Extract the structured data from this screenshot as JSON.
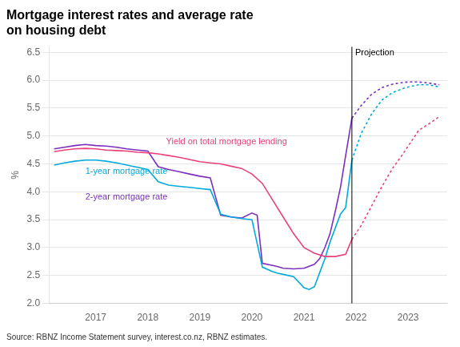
{
  "chart_data": {
    "type": "line",
    "title": [
      "Mortgage interest rates and average rate",
      "on housing debt"
    ],
    "source": "Source: RBNZ Income Statement survey, interest.co.nz, RBNZ estimates.",
    "y_label": "%",
    "xlim": [
      2016.1,
      2023.75
    ],
    "xticks": [
      2017,
      2018,
      2019,
      2020,
      2021,
      2022,
      2023
    ],
    "ylim": [
      2.0,
      6.6
    ],
    "yticks": [
      {
        "value": 2.0,
        "label": "2.0"
      },
      2.5,
      {
        "value": 3.0,
        "label": "3.0"
      },
      3.5,
      {
        "value": 4.0,
        "label": "4.0"
      },
      4.5,
      {
        "value": 5.0,
        "label": "5.0"
      },
      5.5,
      {
        "value": 6.0,
        "label": "6.0"
      },
      6.5
    ],
    "grid": "y",
    "series": [
      {
        "color": "#e8417a",
        "line_style": "solid",
        "x": [
          2016.2,
          2016.4,
          2016.6,
          2016.8,
          2017.0,
          2017.2,
          2017.4,
          2017.6,
          2017.8,
          2018.0,
          2018.2,
          2018.4,
          2018.6,
          2018.8,
          2019.0,
          2019.2,
          2019.4,
          2019.6,
          2019.8,
          2020.0,
          2020.2,
          2020.4,
          2020.6,
          2020.8,
          2021.0,
          2021.2,
          2021.4,
          2021.6,
          2021.8,
          2021.92
        ],
        "values": [
          4.72,
          4.75,
          4.77,
          4.78,
          4.77,
          4.75,
          4.74,
          4.73,
          4.71,
          4.7,
          4.68,
          4.65,
          4.62,
          4.58,
          4.54,
          4.52,
          4.5,
          4.46,
          4.42,
          4.32,
          4.15,
          3.85,
          3.55,
          3.25,
          3.0,
          2.9,
          2.84,
          2.84,
          2.88,
          3.15
        ]
      },
      {
        "color": "#00aadd",
        "line_style": "solid",
        "x": [
          2016.2,
          2016.4,
          2016.6,
          2016.8,
          2017.0,
          2017.2,
          2017.4,
          2017.6,
          2017.8,
          2018.0,
          2018.2,
          2018.4,
          2018.6,
          2018.8,
          2019.0,
          2019.2,
          2019.4,
          2019.6,
          2019.8,
          2020.0,
          2020.2,
          2020.4,
          2020.5,
          2020.6,
          2020.8,
          2021.0,
          2021.1,
          2021.2,
          2021.4,
          2021.5,
          2021.6,
          2021.7,
          2021.8,
          2021.92
        ],
        "values": [
          4.48,
          4.52,
          4.55,
          4.57,
          4.57,
          4.55,
          4.52,
          4.48,
          4.44,
          4.4,
          4.18,
          4.12,
          4.1,
          4.08,
          4.06,
          4.04,
          3.6,
          3.55,
          3.52,
          3.5,
          2.65,
          2.57,
          2.54,
          2.52,
          2.48,
          2.28,
          2.25,
          2.3,
          2.8,
          3.1,
          3.35,
          3.6,
          3.72,
          4.57
        ]
      },
      {
        "color": "#7b2fbe",
        "line_style": "solid",
        "x": [
          2016.2,
          2016.4,
          2016.6,
          2016.8,
          2017.0,
          2017.2,
          2017.4,
          2017.6,
          2017.8,
          2018.0,
          2018.2,
          2018.4,
          2018.6,
          2018.8,
          2019.0,
          2019.2,
          2019.4,
          2019.6,
          2019.8,
          2020.0,
          2020.1,
          2020.2,
          2020.4,
          2020.5,
          2020.6,
          2020.8,
          2021.0,
          2021.2,
          2021.3,
          2021.4,
          2021.5,
          2021.6,
          2021.7,
          2021.8,
          2021.92
        ],
        "values": [
          4.77,
          4.8,
          4.83,
          4.85,
          4.83,
          4.82,
          4.8,
          4.77,
          4.75,
          4.73,
          4.45,
          4.4,
          4.36,
          4.32,
          4.28,
          4.25,
          3.58,
          3.55,
          3.53,
          3.62,
          3.58,
          2.72,
          2.68,
          2.66,
          2.63,
          2.62,
          2.63,
          2.7,
          2.8,
          3.0,
          3.25,
          3.65,
          4.08,
          4.65,
          5.32
        ]
      },
      {
        "color": "#e8417a",
        "line_style": "dotted",
        "x": [
          2021.92,
          2022.1,
          2022.3,
          2022.5,
          2022.7,
          2022.9,
          2023.0,
          2023.2,
          2023.4,
          2023.6
        ],
        "values": [
          3.15,
          3.4,
          3.75,
          4.1,
          4.42,
          4.68,
          4.82,
          5.1,
          5.22,
          5.35
        ]
      },
      {
        "color": "#00aadd",
        "line_style": "dotted",
        "x": [
          2021.92,
          2022.1,
          2022.3,
          2022.5,
          2022.7,
          2022.9,
          2023.0,
          2023.2,
          2023.4,
          2023.6
        ],
        "values": [
          4.57,
          5.05,
          5.4,
          5.65,
          5.78,
          5.85,
          5.88,
          5.92,
          5.92,
          5.88
        ]
      },
      {
        "color": "#7b2fbe",
        "line_style": "dotted",
        "x": [
          2021.92,
          2022.1,
          2022.3,
          2022.5,
          2022.7,
          2022.9,
          2023.0,
          2023.2,
          2023.4,
          2023.6
        ],
        "values": [
          5.32,
          5.55,
          5.75,
          5.87,
          5.93,
          5.96,
          5.97,
          5.97,
          5.95,
          5.92
        ]
      }
    ],
    "vline": {
      "x": 2021.92,
      "label": "Projection",
      "color": "#000000"
    },
    "annotations": [
      {
        "text": "Yield on total mortgage lending",
        "x": 2018.35,
        "y": 4.82,
        "color": "#e8417a"
      },
      {
        "text": "1-year mortgage rate",
        "x": 2016.8,
        "y": 4.28,
        "color": "#00aadd"
      },
      {
        "text": "2-year mortgage rate",
        "x": 2016.8,
        "y": 3.82,
        "color": "#7b2fbe"
      }
    ]
  }
}
